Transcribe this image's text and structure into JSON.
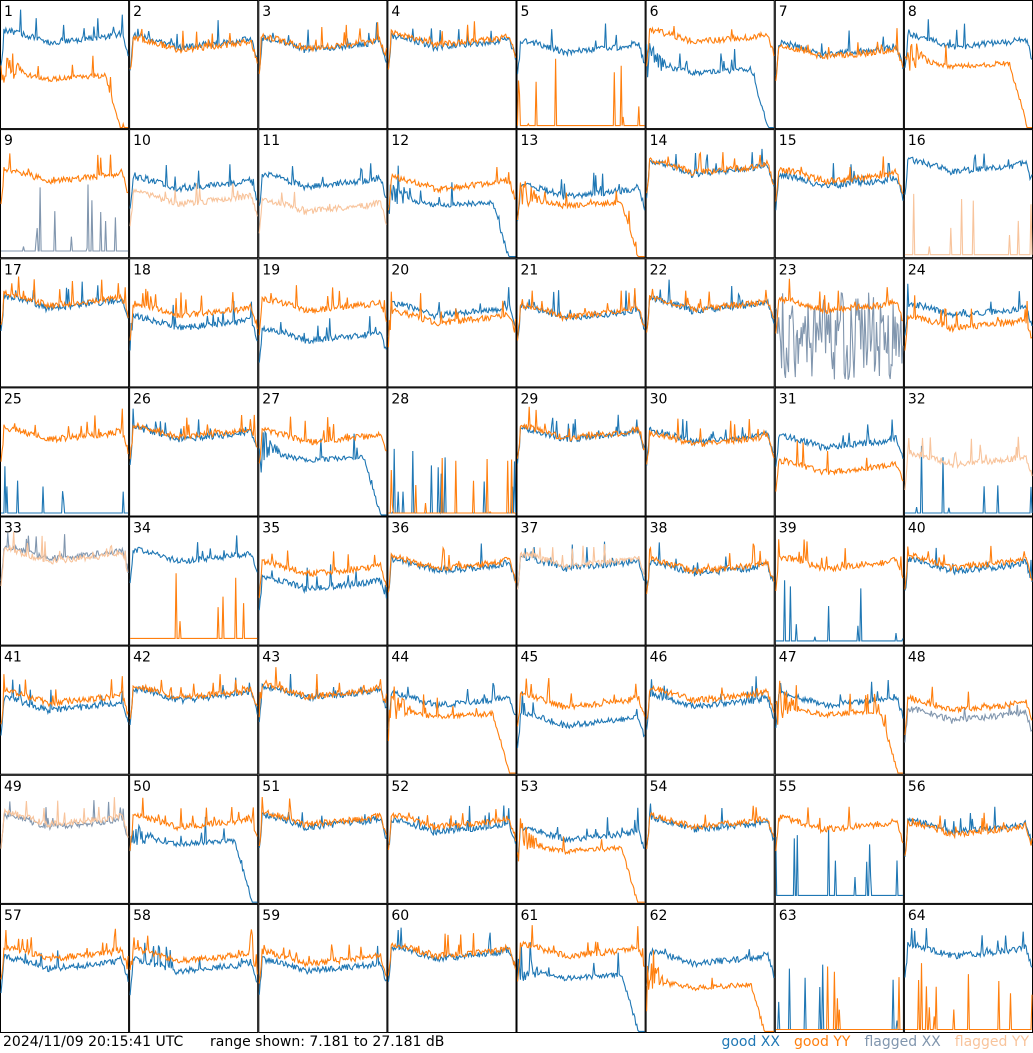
{
  "footer": {
    "timestamp": "2024/11/09 20:15:41 UTC",
    "range_text": "range shown: 7.181 to 27.181 dB"
  },
  "legend": {
    "good_xx": "good XX",
    "good_yy": "good YY",
    "flagged_xx": "flagged XX",
    "flagged_yy": "flagged YY"
  },
  "colors": {
    "good_xx": "#1f77b4",
    "good_yy": "#ff7f0e",
    "flagged_xx": "#8196ae",
    "flagged_yy": "#f8c49c"
  },
  "chart_data": {
    "type": "line",
    "grid": [
      8,
      8
    ],
    "ylim": [
      7.181,
      27.181
    ],
    "yunit": "dB",
    "panels": [
      {
        "label": "1",
        "xx": {
          "status": "good",
          "shape": "normal",
          "level": 0.7
        },
        "yy": {
          "status": "good",
          "shape": "droop",
          "level": 0.4
        }
      },
      {
        "label": "2",
        "xx": {
          "status": "good",
          "shape": "normal",
          "level": 0.66
        },
        "yy": {
          "status": "good",
          "shape": "normal",
          "level": 0.64
        }
      },
      {
        "label": "3",
        "xx": {
          "status": "good",
          "shape": "normal",
          "level": 0.64
        },
        "yy": {
          "status": "good",
          "shape": "normal",
          "level": 0.65
        }
      },
      {
        "label": "4",
        "xx": {
          "status": "good",
          "shape": "normal",
          "level": 0.66
        },
        "yy": {
          "status": "good",
          "shape": "normal",
          "level": 0.68
        }
      },
      {
        "label": "5",
        "xx": {
          "status": "good",
          "shape": "normal",
          "level": 0.62
        },
        "yy": {
          "status": "good",
          "shape": "dead",
          "level": 0.02
        }
      },
      {
        "label": "6",
        "xx": {
          "status": "good",
          "shape": "droop",
          "level": 0.45
        },
        "yy": {
          "status": "good",
          "shape": "normal",
          "level": 0.7
        }
      },
      {
        "label": "7",
        "xx": {
          "status": "good",
          "shape": "normal",
          "level": 0.6
        },
        "yy": {
          "status": "good",
          "shape": "normal",
          "level": 0.58
        }
      },
      {
        "label": "8",
        "xx": {
          "status": "good",
          "shape": "normal",
          "level": 0.66
        },
        "yy": {
          "status": "good",
          "shape": "droop",
          "level": 0.5
        }
      },
      {
        "label": "9",
        "xx": {
          "status": "flagged",
          "shape": "dead",
          "level": 0.05
        },
        "yy": {
          "status": "good",
          "shape": "normal",
          "level": 0.62
        }
      },
      {
        "label": "10",
        "xx": {
          "status": "good",
          "shape": "normal",
          "level": 0.56
        },
        "yy": {
          "status": "flagged",
          "shape": "normal",
          "level": 0.44
        }
      },
      {
        "label": "11",
        "xx": {
          "status": "good",
          "shape": "normal",
          "level": 0.58
        },
        "yy": {
          "status": "flagged",
          "shape": "normal",
          "level": 0.38
        }
      },
      {
        "label": "12",
        "xx": {
          "status": "good",
          "shape": "droop",
          "level": 0.42
        },
        "yy": {
          "status": "good",
          "shape": "normal",
          "level": 0.56
        }
      },
      {
        "label": "13",
        "xx": {
          "status": "good",
          "shape": "normal",
          "level": 0.5
        },
        "yy": {
          "status": "good",
          "shape": "droop",
          "level": 0.42
        }
      },
      {
        "label": "14",
        "xx": {
          "status": "good",
          "shape": "normal",
          "level": 0.68
        },
        "yy": {
          "status": "good",
          "shape": "normal",
          "level": 0.69
        }
      },
      {
        "label": "15",
        "xx": {
          "status": "good",
          "shape": "normal",
          "level": 0.58
        },
        "yy": {
          "status": "good",
          "shape": "normal",
          "level": 0.62
        }
      },
      {
        "label": "16",
        "xx": {
          "status": "good",
          "shape": "normal",
          "level": 0.7
        },
        "yy": {
          "status": "flagged",
          "shape": "dead",
          "level": 0.02
        }
      },
      {
        "label": "17",
        "xx": {
          "status": "good",
          "shape": "normal",
          "level": 0.64
        },
        "yy": {
          "status": "good",
          "shape": "normal",
          "level": 0.66
        }
      },
      {
        "label": "18",
        "xx": {
          "status": "good",
          "shape": "normal",
          "level": 0.48
        },
        "yy": {
          "status": "good",
          "shape": "normal",
          "level": 0.58
        }
      },
      {
        "label": "19",
        "xx": {
          "status": "good",
          "shape": "normal",
          "level": 0.38
        },
        "yy": {
          "status": "good",
          "shape": "normal",
          "level": 0.62
        }
      },
      {
        "label": "20",
        "xx": {
          "status": "good",
          "shape": "normal",
          "level": 0.58
        },
        "yy": {
          "status": "good",
          "shape": "normal",
          "level": 0.52
        }
      },
      {
        "label": "21",
        "xx": {
          "status": "good",
          "shape": "normal",
          "level": 0.56
        },
        "yy": {
          "status": "good",
          "shape": "normal",
          "level": 0.57
        }
      },
      {
        "label": "22",
        "xx": {
          "status": "good",
          "shape": "normal",
          "level": 0.62
        },
        "yy": {
          "status": "good",
          "shape": "normal",
          "level": 0.63
        }
      },
      {
        "label": "23",
        "xx": {
          "status": "flagged",
          "shape": "noise",
          "level": 0.4
        },
        "yy": {
          "status": "good",
          "shape": "normal",
          "level": 0.62
        }
      },
      {
        "label": "24",
        "xx": {
          "status": "good",
          "shape": "normal",
          "level": 0.58
        },
        "yy": {
          "status": "good",
          "shape": "normal",
          "level": 0.48
        }
      },
      {
        "label": "25",
        "xx": {
          "status": "good",
          "shape": "dead",
          "level": 0.02
        },
        "yy": {
          "status": "good",
          "shape": "normal",
          "level": 0.62
        }
      },
      {
        "label": "26",
        "xx": {
          "status": "good",
          "shape": "normal",
          "level": 0.62
        },
        "yy": {
          "status": "good",
          "shape": "normal",
          "level": 0.64
        }
      },
      {
        "label": "27",
        "xx": {
          "status": "good",
          "shape": "droop",
          "level": 0.45
        },
        "yy": {
          "status": "good",
          "shape": "normal",
          "level": 0.6
        }
      },
      {
        "label": "28",
        "xx": {
          "status": "good",
          "shape": "dead",
          "level": 0.02
        },
        "yy": {
          "status": "good",
          "shape": "dead",
          "level": 0.02
        }
      },
      {
        "label": "29",
        "xx": {
          "status": "good",
          "shape": "normal",
          "level": 0.62
        },
        "yy": {
          "status": "good",
          "shape": "normal",
          "level": 0.63
        }
      },
      {
        "label": "30",
        "xx": {
          "status": "good",
          "shape": "normal",
          "level": 0.6
        },
        "yy": {
          "status": "good",
          "shape": "normal",
          "level": 0.58
        }
      },
      {
        "label": "31",
        "xx": {
          "status": "good",
          "shape": "normal",
          "level": 0.56
        },
        "yy": {
          "status": "good",
          "shape": "normal",
          "level": 0.36
        }
      },
      {
        "label": "32",
        "xx": {
          "status": "good",
          "shape": "dead",
          "level": 0.02
        },
        "yy": {
          "status": "flagged",
          "shape": "normal",
          "level": 0.42
        }
      },
      {
        "label": "33",
        "xx": {
          "status": "flagged",
          "shape": "normal",
          "level": 0.7
        },
        "yy": {
          "status": "flagged",
          "shape": "normal",
          "level": 0.68
        }
      },
      {
        "label": "34",
        "xx": {
          "status": "good",
          "shape": "normal",
          "level": 0.68
        },
        "yy": {
          "status": "good",
          "shape": "dead",
          "level": 0.05
        }
      },
      {
        "label": "35",
        "xx": {
          "status": "good",
          "shape": "normal",
          "level": 0.46
        },
        "yy": {
          "status": "good",
          "shape": "normal",
          "level": 0.58
        }
      },
      {
        "label": "36",
        "xx": {
          "status": "good",
          "shape": "normal",
          "level": 0.6
        },
        "yy": {
          "status": "good",
          "shape": "normal",
          "level": 0.62
        }
      },
      {
        "label": "37",
        "xx": {
          "status": "good",
          "shape": "normal",
          "level": 0.62
        },
        "yy": {
          "status": "flagged",
          "shape": "normal",
          "level": 0.64
        }
      },
      {
        "label": "38",
        "xx": {
          "status": "good",
          "shape": "normal",
          "level": 0.58
        },
        "yy": {
          "status": "good",
          "shape": "normal",
          "level": 0.6
        }
      },
      {
        "label": "39",
        "xx": {
          "status": "good",
          "shape": "dead",
          "level": 0.03
        },
        "yy": {
          "status": "good",
          "shape": "normal",
          "level": 0.62
        }
      },
      {
        "label": "40",
        "xx": {
          "status": "good",
          "shape": "normal",
          "level": 0.6
        },
        "yy": {
          "status": "good",
          "shape": "normal",
          "level": 0.63
        }
      },
      {
        "label": "41",
        "xx": {
          "status": "good",
          "shape": "normal",
          "level": 0.52
        },
        "yy": {
          "status": "good",
          "shape": "normal",
          "level": 0.58
        }
      },
      {
        "label": "42",
        "xx": {
          "status": "good",
          "shape": "normal",
          "level": 0.6
        },
        "yy": {
          "status": "good",
          "shape": "normal",
          "level": 0.62
        }
      },
      {
        "label": "43",
        "xx": {
          "status": "good",
          "shape": "normal",
          "level": 0.62
        },
        "yy": {
          "status": "good",
          "shape": "normal",
          "level": 0.63
        }
      },
      {
        "label": "44",
        "xx": {
          "status": "good",
          "shape": "normal",
          "level": 0.56
        },
        "yy": {
          "status": "good",
          "shape": "droop",
          "level": 0.46
        }
      },
      {
        "label": "45",
        "xx": {
          "status": "good",
          "shape": "normal",
          "level": 0.4
        },
        "yy": {
          "status": "good",
          "shape": "normal",
          "level": 0.55
        }
      },
      {
        "label": "46",
        "xx": {
          "status": "good",
          "shape": "normal",
          "level": 0.55
        },
        "yy": {
          "status": "good",
          "shape": "normal",
          "level": 0.6
        }
      },
      {
        "label": "47",
        "xx": {
          "status": "good",
          "shape": "normal",
          "level": 0.56
        },
        "yy": {
          "status": "good",
          "shape": "droop",
          "level": 0.48
        }
      },
      {
        "label": "48",
        "xx": {
          "status": "flagged",
          "shape": "normal",
          "level": 0.44
        },
        "yy": {
          "status": "good",
          "shape": "normal",
          "level": 0.52
        }
      },
      {
        "label": "49",
        "xx": {
          "status": "flagged",
          "shape": "normal",
          "level": 0.62
        },
        "yy": {
          "status": "flagged",
          "shape": "normal",
          "level": 0.64
        }
      },
      {
        "label": "50",
        "xx": {
          "status": "good",
          "shape": "droop",
          "level": 0.48
        },
        "yy": {
          "status": "good",
          "shape": "normal",
          "level": 0.62
        }
      },
      {
        "label": "51",
        "xx": {
          "status": "good",
          "shape": "normal",
          "level": 0.62
        },
        "yy": {
          "status": "good",
          "shape": "normal",
          "level": 0.64
        }
      },
      {
        "label": "52",
        "xx": {
          "status": "good",
          "shape": "normal",
          "level": 0.58
        },
        "yy": {
          "status": "good",
          "shape": "normal",
          "level": 0.62
        }
      },
      {
        "label": "53",
        "xx": {
          "status": "good",
          "shape": "normal",
          "level": 0.52
        },
        "yy": {
          "status": "good",
          "shape": "droop",
          "level": 0.42
        }
      },
      {
        "label": "54",
        "xx": {
          "status": "good",
          "shape": "normal",
          "level": 0.6
        },
        "yy": {
          "status": "good",
          "shape": "normal",
          "level": 0.62
        }
      },
      {
        "label": "55",
        "xx": {
          "status": "good",
          "shape": "dead",
          "level": 0.06
        },
        "yy": {
          "status": "good",
          "shape": "normal",
          "level": 0.6
        }
      },
      {
        "label": "56",
        "xx": {
          "status": "good",
          "shape": "normal",
          "level": 0.58
        },
        "yy": {
          "status": "good",
          "shape": "normal",
          "level": 0.56
        }
      },
      {
        "label": "57",
        "xx": {
          "status": "good",
          "shape": "normal",
          "level": 0.52
        },
        "yy": {
          "status": "good",
          "shape": "normal",
          "level": 0.6
        }
      },
      {
        "label": "58",
        "xx": {
          "status": "good",
          "shape": "normal",
          "level": 0.5
        },
        "yy": {
          "status": "good",
          "shape": "normal",
          "level": 0.58
        }
      },
      {
        "label": "59",
        "xx": {
          "status": "good",
          "shape": "normal",
          "level": 0.5
        },
        "yy": {
          "status": "good",
          "shape": "normal",
          "level": 0.56
        }
      },
      {
        "label": "60",
        "xx": {
          "status": "good",
          "shape": "normal",
          "level": 0.6
        },
        "yy": {
          "status": "good",
          "shape": "normal",
          "level": 0.62
        }
      },
      {
        "label": "61",
        "xx": {
          "status": "good",
          "shape": "droop",
          "level": 0.44
        },
        "yy": {
          "status": "good",
          "shape": "normal",
          "level": 0.62
        }
      },
      {
        "label": "62",
        "xx": {
          "status": "good",
          "shape": "normal",
          "level": 0.56
        },
        "yy": {
          "status": "good",
          "shape": "droop",
          "level": 0.36
        }
      },
      {
        "label": "63",
        "xx": {
          "status": "good",
          "shape": "dead",
          "level": 0.02
        },
        "yy": {
          "status": "good",
          "shape": "dead",
          "level": 0.02
        }
      },
      {
        "label": "64",
        "xx": {
          "status": "good",
          "shape": "normal",
          "level": 0.62
        },
        "yy": {
          "status": "good",
          "shape": "dead",
          "level": 0.02
        }
      }
    ]
  }
}
